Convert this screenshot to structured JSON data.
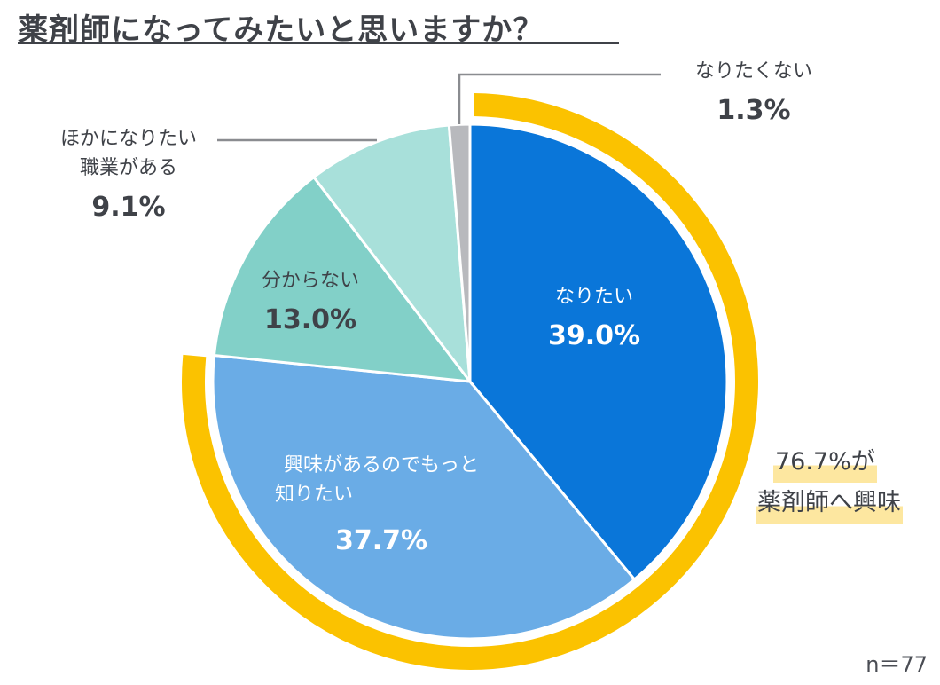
{
  "title": "薬剤師になってみたいと思いますか？",
  "chart_data": {
    "type": "pie",
    "title": "薬剤師になってみたいと思いますか？",
    "slices": [
      {
        "label": "なりたい",
        "value": 39.0,
        "pct_text": "39.0%",
        "color": "#0a76d9"
      },
      {
        "label": "興味があるのでもっと知りたい",
        "label_lines": [
          "興味があるのでもっと",
          "知りたい"
        ],
        "value": 37.7,
        "pct_text": "37.7%",
        "color": "#6aace6"
      },
      {
        "label": "分からない",
        "value": 13.0,
        "pct_text": "13.0%",
        "color": "#82d0c8"
      },
      {
        "label": "ほかになりたい職業がある",
        "label_lines": [
          "ほかになりたい",
          "職業がある"
        ],
        "value": 9.1,
        "pct_text": "9.1%",
        "color": "#a8e0da"
      },
      {
        "label": "なりたくない",
        "value": 1.3,
        "pct_text": "1.3%",
        "color": "#b8b9bd"
      }
    ],
    "highlight": {
      "value": 76.7,
      "line1": "76.7%が",
      "line2": "薬剤師へ興味",
      "arc_color": "#fbc200",
      "highlight_color": "#fde7a0"
    }
  },
  "sample_size": "n＝77"
}
